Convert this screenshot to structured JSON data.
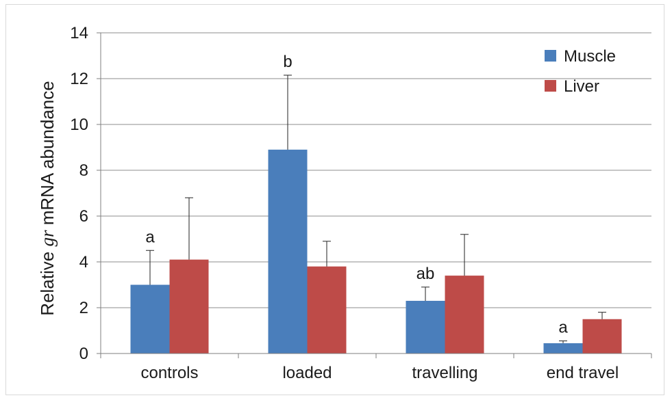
{
  "chart_data": {
    "type": "bar",
    "categories": [
      "controls",
      "loaded",
      "travelling",
      "end travel"
    ],
    "series": [
      {
        "name": "Muscle",
        "color": "#4a7ebb",
        "values": [
          3.0,
          8.9,
          2.3,
          0.45
        ],
        "errors": [
          1.5,
          3.25,
          0.6,
          0.1
        ]
      },
      {
        "name": "Liver",
        "color": "#be4b48",
        "values": [
          4.1,
          3.8,
          3.4,
          1.5
        ],
        "errors": [
          2.7,
          1.1,
          1.8,
          0.3
        ]
      }
    ],
    "annotations": [
      {
        "category": 0,
        "text": "a"
      },
      {
        "category": 1,
        "text": "b"
      },
      {
        "category": 2,
        "text": "ab"
      },
      {
        "category": 3,
        "text": "a"
      }
    ],
    "ylabel_pre": "Relative ",
    "ylabel_gene": "gr",
    "ylabel_post": " mRNA abundance",
    "xlabel": "",
    "ylim": [
      0,
      14
    ],
    "yticks": [
      "0",
      "2",
      "4",
      "6",
      "8",
      "10",
      "12",
      "14"
    ],
    "grid": true,
    "legend_position": "top-right"
  }
}
